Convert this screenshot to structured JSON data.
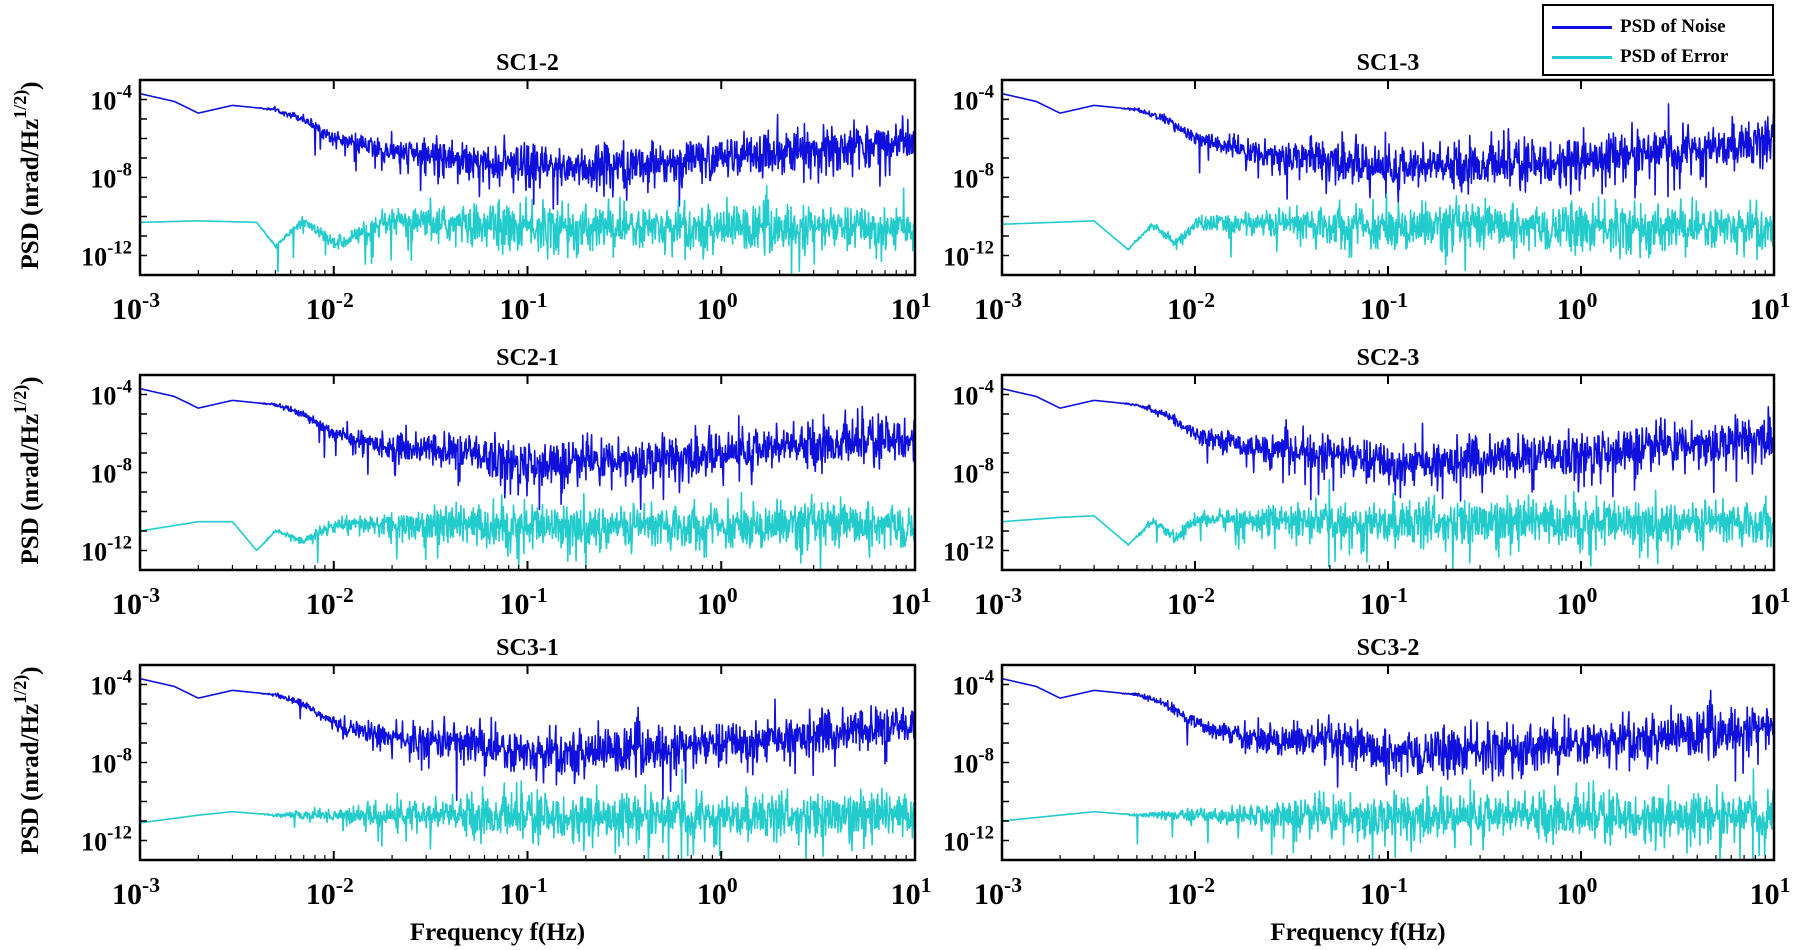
{
  "legend": [
    {
      "label": "PSD of Noise",
      "color": "#1010dd"
    },
    {
      "label": "PSD of Error",
      "color": "#22cccc"
    }
  ],
  "chart_data": [
    {
      "type": "line",
      "title": "SC1-2",
      "xlabel": "",
      "ylabel": "PSD (nrad/Hz^1/2)",
      "xscale": "log",
      "yscale": "log",
      "xlim": [
        0.001,
        10
      ],
      "ylim": [
        1e-13,
        0.001
      ],
      "xticks": [
        0.001,
        0.01,
        0.1,
        1,
        10
      ],
      "yticks": [
        1e-12,
        1e-08,
        0.0001
      ],
      "series": [
        {
          "name": "PSD of Noise",
          "color": "#1010dd",
          "x": [
            0.001,
            0.0015,
            0.002,
            0.003,
            0.005,
            0.007,
            0.01,
            0.02,
            0.05,
            0.1,
            0.2,
            0.5,
            1,
            2,
            5,
            10
          ],
          "y": [
            0.0002,
            8e-05,
            2e-05,
            5e-05,
            3e-05,
            1e-05,
            1e-06,
            2e-07,
            1e-07,
            3e-08,
            4e-08,
            6e-08,
            1e-07,
            2e-07,
            4e-07,
            8e-07
          ]
        },
        {
          "name": "PSD of Error",
          "color": "#22cccc",
          "x": [
            0.001,
            0.002,
            0.004,
            0.005,
            0.007,
            0.01,
            0.02,
            0.05,
            0.1,
            0.5,
            1,
            5,
            10
          ],
          "y": [
            5e-11,
            6e-11,
            5e-11,
            3e-12,
            6e-11,
            4e-12,
            5e-11,
            4e-11,
            3e-11,
            3e-11,
            3e-11,
            3e-11,
            3e-11
          ]
        }
      ]
    },
    {
      "type": "line",
      "title": "SC1-3",
      "xlabel": "",
      "ylabel": "",
      "xscale": "log",
      "yscale": "log",
      "xlim": [
        0.001,
        10
      ],
      "ylim": [
        1e-13,
        0.001
      ],
      "xticks": [
        0.001,
        0.01,
        0.1,
        1,
        10
      ],
      "yticks": [
        1e-12,
        1e-08,
        0.0001
      ],
      "series": [
        {
          "name": "PSD of Noise",
          "color": "#1010dd",
          "x": [
            0.001,
            0.0015,
            0.002,
            0.003,
            0.005,
            0.007,
            0.01,
            0.02,
            0.05,
            0.1,
            0.2,
            0.5,
            1,
            2,
            5,
            10
          ],
          "y": [
            0.0002,
            8e-05,
            2e-05,
            5e-05,
            3e-05,
            1e-05,
            1e-06,
            2e-07,
            1e-07,
            3e-08,
            4e-08,
            6e-08,
            1e-07,
            2e-07,
            4e-07,
            8e-07
          ]
        },
        {
          "name": "PSD of Error",
          "color": "#22cccc",
          "x": [
            0.001,
            0.003,
            0.0045,
            0.006,
            0.008,
            0.01,
            0.02,
            0.05,
            0.1,
            0.5,
            1,
            5,
            10
          ],
          "y": [
            4e-11,
            6e-11,
            2e-12,
            4e-11,
            4e-12,
            4e-11,
            5e-11,
            4e-11,
            3e-11,
            3e-11,
            3e-11,
            3e-11,
            3e-11
          ]
        }
      ]
    },
    {
      "type": "line",
      "title": "SC2-1",
      "xlabel": "",
      "ylabel": "PSD (nrad/Hz^1/2)",
      "xscale": "log",
      "yscale": "log",
      "xlim": [
        0.001,
        10
      ],
      "ylim": [
        1e-13,
        0.001
      ],
      "xticks": [
        0.001,
        0.01,
        0.1,
        1,
        10
      ],
      "yticks": [
        1e-12,
        1e-08,
        0.0001
      ],
      "series": [
        {
          "name": "PSD of Noise",
          "color": "#1010dd",
          "x": [
            0.001,
            0.0015,
            0.002,
            0.003,
            0.005,
            0.007,
            0.01,
            0.02,
            0.05,
            0.1,
            0.2,
            0.5,
            1,
            2,
            5,
            10
          ],
          "y": [
            0.0002,
            8e-05,
            2e-05,
            5e-05,
            3e-05,
            1e-05,
            1e-06,
            2e-07,
            1e-07,
            3e-08,
            4e-08,
            6e-08,
            1e-07,
            2e-07,
            4e-07,
            8e-07
          ]
        },
        {
          "name": "PSD of Error",
          "color": "#22cccc",
          "x": [
            0.001,
            0.002,
            0.003,
            0.004,
            0.005,
            0.007,
            0.01,
            0.02,
            0.05,
            0.1,
            0.5,
            1,
            5,
            10
          ],
          "y": [
            1e-11,
            3e-11,
            3e-11,
            1e-12,
            1e-11,
            3e-12,
            2e-11,
            2e-11,
            2e-11,
            2e-11,
            2e-11,
            2e-11,
            2e-11,
            2e-11
          ]
        }
      ]
    },
    {
      "type": "line",
      "title": "SC2-3",
      "xlabel": "",
      "ylabel": "",
      "xscale": "log",
      "yscale": "log",
      "xlim": [
        0.001,
        10
      ],
      "ylim": [
        1e-13,
        0.001
      ],
      "xticks": [
        0.001,
        0.01,
        0.1,
        1,
        10
      ],
      "yticks": [
        1e-12,
        1e-08,
        0.0001
      ],
      "series": [
        {
          "name": "PSD of Noise",
          "color": "#1010dd",
          "x": [
            0.001,
            0.0015,
            0.002,
            0.003,
            0.005,
            0.007,
            0.01,
            0.02,
            0.05,
            0.1,
            0.2,
            0.5,
            1,
            2,
            5,
            10
          ],
          "y": [
            0.0002,
            8e-05,
            2e-05,
            5e-05,
            3e-05,
            1e-05,
            1e-06,
            2e-07,
            1e-07,
            3e-08,
            4e-08,
            6e-08,
            1e-07,
            2e-07,
            4e-07,
            8e-07
          ]
        },
        {
          "name": "PSD of Error",
          "color": "#22cccc",
          "x": [
            0.001,
            0.002,
            0.003,
            0.0045,
            0.006,
            0.008,
            0.01,
            0.02,
            0.05,
            0.1,
            0.5,
            1,
            5,
            10
          ],
          "y": [
            3e-11,
            5e-11,
            6e-11,
            2e-12,
            3e-11,
            4e-12,
            4e-11,
            4e-11,
            3e-11,
            3e-11,
            3e-11,
            3e-11,
            3e-11,
            3e-11
          ]
        }
      ]
    },
    {
      "type": "line",
      "title": "SC3-1",
      "xlabel": "Frequency f(Hz)",
      "ylabel": "PSD (nrad/Hz^1/2)",
      "xscale": "log",
      "yscale": "log",
      "xlim": [
        0.001,
        10
      ],
      "ylim": [
        1e-13,
        0.001
      ],
      "xticks": [
        0.001,
        0.01,
        0.1,
        1,
        10
      ],
      "yticks": [
        1e-12,
        1e-08,
        0.0001
      ],
      "series": [
        {
          "name": "PSD of Noise",
          "color": "#1010dd",
          "x": [
            0.001,
            0.0015,
            0.002,
            0.003,
            0.005,
            0.007,
            0.01,
            0.02,
            0.05,
            0.1,
            0.2,
            0.5,
            1,
            2,
            5,
            10
          ],
          "y": [
            0.0002,
            8e-05,
            2e-05,
            5e-05,
            3e-05,
            1e-05,
            1e-06,
            2e-07,
            1e-07,
            3e-08,
            4e-08,
            6e-08,
            1e-07,
            2e-07,
            4e-07,
            8e-07
          ]
        },
        {
          "name": "PSD of Error",
          "color": "#22cccc",
          "x": [
            0.001,
            0.002,
            0.003,
            0.005,
            0.01,
            0.02,
            0.05,
            0.1,
            0.5,
            1,
            5,
            10
          ],
          "y": [
            8e-12,
            2e-11,
            3e-11,
            2e-11,
            2e-11,
            2e-11,
            2e-11,
            2e-11,
            2e-11,
            2e-11,
            2e-11,
            2e-11
          ]
        }
      ]
    },
    {
      "type": "line",
      "title": "SC3-2",
      "xlabel": "Frequency f(Hz)",
      "ylabel": "",
      "xscale": "log",
      "yscale": "log",
      "xlim": [
        0.001,
        10
      ],
      "ylim": [
        1e-13,
        0.001
      ],
      "xticks": [
        0.001,
        0.01,
        0.1,
        1,
        10
      ],
      "yticks": [
        1e-12,
        1e-08,
        0.0001
      ],
      "series": [
        {
          "name": "PSD of Noise",
          "color": "#1010dd",
          "x": [
            0.001,
            0.0015,
            0.002,
            0.003,
            0.005,
            0.007,
            0.01,
            0.02,
            0.05,
            0.1,
            0.2,
            0.5,
            1,
            2,
            5,
            10
          ],
          "y": [
            0.0002,
            8e-05,
            2e-05,
            5e-05,
            3e-05,
            1e-05,
            1e-06,
            2e-07,
            1e-07,
            3e-08,
            4e-08,
            6e-08,
            1e-07,
            2e-07,
            4e-07,
            8e-07
          ]
        },
        {
          "name": "PSD of Error",
          "color": "#22cccc",
          "x": [
            0.001,
            0.002,
            0.003,
            0.005,
            0.01,
            0.02,
            0.05,
            0.1,
            0.5,
            1,
            5,
            10
          ],
          "y": [
            1e-11,
            2e-11,
            3e-11,
            2e-11,
            2e-11,
            2e-11,
            2e-11,
            2e-11,
            2e-11,
            2e-11,
            2e-11,
            2e-11
          ]
        }
      ]
    }
  ]
}
